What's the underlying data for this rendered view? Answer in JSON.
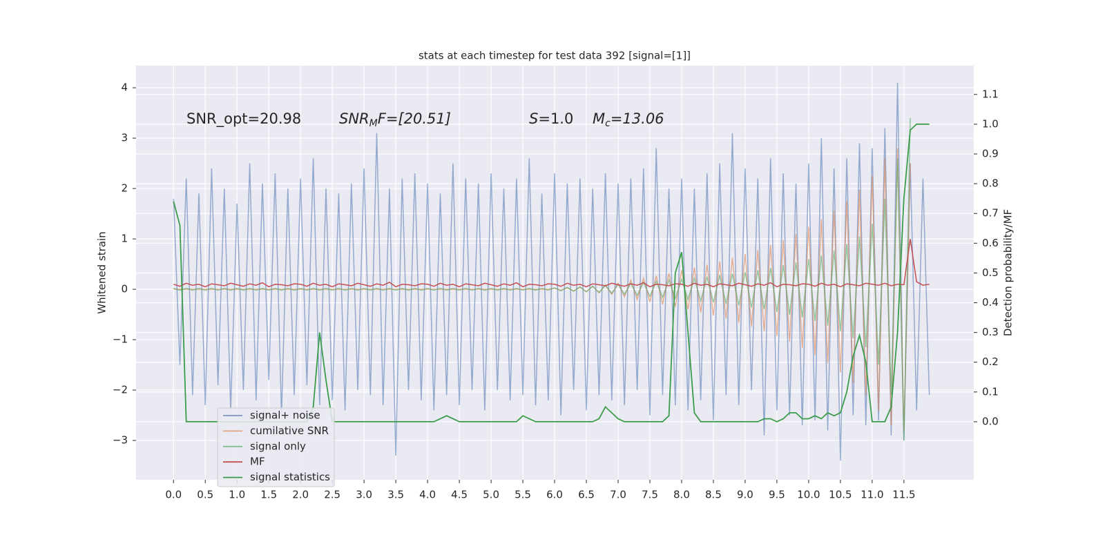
{
  "chart_data": {
    "type": "line",
    "title": "stats at each timestep for test data 392 [signal=[1]]",
    "y_label": "Whitened strain",
    "y2_label": "Detection probability/MF",
    "annotations": [
      {
        "text": "SNR_opt=20.98"
      },
      {
        "symbol": "SNR",
        "subscript": "M",
        "text": "F=[20.51]"
      },
      {
        "symbol": "S",
        "text": "=1.0"
      },
      {
        "symbol": "M",
        "subscript": "c",
        "text": "=13.06"
      }
    ],
    "grid": true,
    "legend": "lower left",
    "xlim": [
      -0.59,
      12.6
    ],
    "ylim": [
      -3.78,
      4.44
    ],
    "y2lim": [
      -0.195,
      1.197
    ],
    "xticks": [
      {
        "value": 0,
        "label": "0.0"
      },
      {
        "value": 0.5,
        "label": "0.5"
      },
      {
        "value": 1,
        "label": "1.0"
      },
      {
        "value": 1.5,
        "label": "1.5"
      },
      {
        "value": 2,
        "label": "2.0"
      },
      {
        "value": 2.5,
        "label": "2.5"
      },
      {
        "value": 3,
        "label": "3.0"
      },
      {
        "value": 3.5,
        "label": "3.5"
      },
      {
        "value": 4,
        "label": "4.0"
      },
      {
        "value": 4.5,
        "label": "4.5"
      },
      {
        "value": 5,
        "label": "5.0"
      },
      {
        "value": 5.5,
        "label": "5.5"
      },
      {
        "value": 6,
        "label": "6.0"
      },
      {
        "value": 6.5,
        "label": "6.5"
      },
      {
        "value": 7,
        "label": "7.0"
      },
      {
        "value": 7.5,
        "label": "7.5"
      },
      {
        "value": 8,
        "label": "8.0"
      },
      {
        "value": 8.5,
        "label": "8.5"
      },
      {
        "value": 9,
        "label": "9.0"
      },
      {
        "value": 9.5,
        "label": "9.5"
      },
      {
        "value": 10,
        "label": "10.0"
      },
      {
        "value": 10.5,
        "label": "10.5"
      },
      {
        "value": 11,
        "label": "11.0"
      },
      {
        "value": 11.5,
        "label": "11.5"
      }
    ],
    "yticks": [
      {
        "value": -3,
        "label": "−3"
      },
      {
        "value": -2,
        "label": "−2"
      },
      {
        "value": -1,
        "label": "−1"
      },
      0,
      1,
      2,
      3,
      4
    ],
    "y2ticks": [
      {
        "value": 0,
        "label": "0.0"
      },
      {
        "value": 0.1,
        "label": "0.1"
      },
      {
        "value": 0.2,
        "label": "0.2"
      },
      {
        "value": 0.3,
        "label": "0.3"
      },
      {
        "value": 0.4,
        "label": "0.4"
      },
      {
        "value": 0.5,
        "label": "0.5"
      },
      {
        "value": 0.6,
        "label": "0.6"
      },
      {
        "value": 0.7,
        "label": "0.7"
      },
      {
        "value": 0.8,
        "label": "0.8"
      },
      {
        "value": 0.9,
        "label": "0.9"
      },
      {
        "value": 1,
        "label": "1.0"
      },
      {
        "value": 1.1,
        "label": "1.1"
      }
    ],
    "x": [
      0,
      0.1,
      0.2,
      0.3,
      0.4,
      0.5,
      0.6,
      0.7,
      0.8,
      0.9,
      1,
      1.1,
      1.2,
      1.3,
      1.4,
      1.5,
      1.6,
      1.7,
      1.8,
      1.9,
      2,
      2.1,
      2.2,
      2.3,
      2.4,
      2.5,
      2.6,
      2.7,
      2.8,
      2.9,
      3,
      3.1,
      3.2,
      3.3,
      3.4,
      3.5,
      3.6,
      3.7,
      3.8,
      3.9,
      4,
      4.1,
      4.2,
      4.3,
      4.4,
      4.5,
      4.6,
      4.7,
      4.8,
      4.9,
      5,
      5.1,
      5.2,
      5.3,
      5.4,
      5.5,
      5.6,
      5.7,
      5.8,
      5.9,
      6,
      6.1,
      6.2,
      6.3,
      6.4,
      6.5,
      6.6,
      6.7,
      6.8,
      6.9,
      7,
      7.1,
      7.2,
      7.3,
      7.4,
      7.5,
      7.6,
      7.7,
      7.8,
      7.9,
      8,
      8.1,
      8.2,
      8.3,
      8.4,
      8.5,
      8.6,
      8.7,
      8.8,
      8.9,
      9,
      9.1,
      9.2,
      9.3,
      9.4,
      9.5,
      9.6,
      9.7,
      9.8,
      9.9,
      10,
      10.1,
      10.2,
      10.3,
      10.4,
      10.5,
      10.6,
      10.7,
      10.8,
      10.9,
      11,
      11.1,
      11.2,
      11.3,
      11.4,
      11.5,
      11.6,
      11.7,
      11.8,
      11.9
    ],
    "series": [
      {
        "name": "signal+ noise",
        "color": "#4c72b0",
        "values": [
          1.8,
          -1.5,
          2.2,
          -2.1,
          1.9,
          -2.3,
          2.4,
          -1.9,
          2.0,
          -2.4,
          1.7,
          -2.0,
          2.5,
          -2.2,
          2.1,
          -1.8,
          2.3,
          -2.5,
          2.0,
          -2.1,
          2.2,
          -1.9,
          2.6,
          -2.3,
          2.0,
          -2.2,
          1.9,
          -2.4,
          2.1,
          -2.0,
          2.4,
          -2.1,
          3.1,
          -2.3,
          2.0,
          -3.3,
          2.2,
          -2.0,
          2.3,
          -2.2,
          2.1,
          -2.4,
          1.9,
          -2.1,
          2.5,
          -2.3,
          2.2,
          -2.0,
          2.1,
          -2.4,
          2.3,
          -2.0,
          2.0,
          -2.2,
          2.2,
          -2.1,
          2.6,
          -2.3,
          1.9,
          -2.2,
          2.3,
          -2.5,
          2.1,
          -2.0,
          2.2,
          -2.4,
          2.0,
          -2.1,
          2.3,
          -2.2,
          2.1,
          -2.3,
          2.2,
          -2.0,
          2.4,
          -2.5,
          2.8,
          -2.1,
          2.0,
          -2.3,
          2.2,
          -2.4,
          2.0,
          -2.2,
          2.3,
          -2.6,
          2.5,
          -2.1,
          3.1,
          -2.3,
          2.4,
          -2.0,
          2.2,
          -2.9,
          2.6,
          -2.4,
          2.3,
          -2.5,
          2.1,
          -2.7,
          2.5,
          -2.6,
          3.0,
          -2.8,
          2.4,
          -3.4,
          2.6,
          -2.5,
          2.9,
          -2.7,
          2.8,
          -2.6,
          3.2,
          -2.9,
          4.1,
          -3.0,
          2.5,
          -2.4,
          2.2,
          -2.1
        ]
      },
      {
        "name": "cumilative SNR",
        "color": "#dd8452",
        "values": [
          0,
          0,
          0,
          0,
          0,
          0,
          0,
          0,
          0,
          0,
          0,
          0,
          0,
          0,
          0,
          0,
          0,
          0,
          0,
          0,
          0,
          0,
          0,
          0,
          0,
          0,
          0,
          0,
          0,
          0,
          0,
          0,
          0,
          0,
          0,
          0,
          0,
          0,
          0,
          0,
          0,
          0,
          0,
          0,
          0,
          0,
          0,
          0,
          0,
          0,
          0,
          0,
          0,
          0,
          0,
          0,
          0,
          0,
          0,
          0,
          0.02,
          -0.02,
          0.03,
          -0.03,
          0.04,
          -0.05,
          0.06,
          -0.07,
          0.08,
          -0.1,
          0.12,
          -0.15,
          0.18,
          -0.2,
          0.22,
          -0.25,
          0.27,
          -0.3,
          0.32,
          -0.35,
          0.38,
          -0.4,
          0.43,
          -0.46,
          0.49,
          -0.52,
          0.55,
          -0.58,
          0.62,
          -0.66,
          0.7,
          -0.74,
          0.78,
          -0.83,
          0.88,
          -0.93,
          0.98,
          -1.04,
          1.1,
          -1.17,
          1.24,
          -1.31,
          1.39,
          -1.47,
          1.56,
          -1.65,
          1.75,
          -1.86,
          1.98,
          -2.1,
          2.25,
          -2.4,
          2.6,
          -2.7,
          2.8,
          -2.8,
          2.5,
          null,
          null,
          null
        ]
      },
      {
        "name": "signal only",
        "color": "#55a868",
        "values": [
          0.02,
          -0.02,
          0.02,
          -0.02,
          0.02,
          -0.02,
          0.02,
          -0.02,
          0.02,
          -0.02,
          0.02,
          -0.02,
          0.02,
          -0.02,
          0.02,
          -0.02,
          0.02,
          -0.02,
          0.02,
          -0.02,
          0.02,
          -0.02,
          0.02,
          -0.02,
          0.02,
          -0.02,
          0.02,
          -0.02,
          0.02,
          -0.02,
          0.02,
          -0.02,
          0.02,
          -0.02,
          0.02,
          -0.02,
          0.02,
          -0.02,
          0.02,
          -0.02,
          0.02,
          -0.02,
          0.02,
          -0.02,
          0.02,
          -0.02,
          0.02,
          -0.02,
          0.02,
          -0.02,
          0.02,
          -0.02,
          0.02,
          -0.02,
          0.02,
          -0.02,
          0.02,
          -0.02,
          0.02,
          -0.02,
          0.03,
          -0.03,
          0.04,
          -0.04,
          0.05,
          -0.05,
          0.06,
          -0.06,
          0.08,
          -0.08,
          0.1,
          -0.1,
          0.12,
          -0.12,
          0.14,
          -0.14,
          0.16,
          -0.16,
          0.18,
          -0.18,
          0.2,
          -0.2,
          0.22,
          -0.23,
          0.25,
          -0.26,
          0.28,
          -0.29,
          0.31,
          -0.32,
          0.34,
          -0.36,
          0.38,
          -0.4,
          0.42,
          -0.45,
          0.48,
          -0.5,
          0.53,
          -0.56,
          0.6,
          -0.63,
          0.67,
          -0.72,
          0.77,
          -0.83,
          0.9,
          -0.97,
          1.05,
          -1.15,
          1.3,
          -1.5,
          1.8,
          -2.1,
          2.6,
          -3.0,
          3.4,
          null,
          null,
          null
        ]
      },
      {
        "name": "MF",
        "color": "#c44e52",
        "values": [
          0.1,
          0.06,
          0.12,
          0.08,
          0.1,
          0.05,
          0.11,
          0.09,
          0.07,
          0.12,
          0.09,
          0.06,
          0.11,
          0.08,
          0.13,
          0.05,
          0.1,
          0.09,
          0.07,
          0.11,
          0.1,
          0.06,
          0.12,
          0.08,
          0.1,
          0.05,
          0.11,
          0.09,
          0.07,
          0.12,
          0.09,
          0.06,
          0.11,
          0.08,
          0.14,
          0.05,
          0.1,
          0.09,
          0.07,
          0.11,
          0.1,
          0.06,
          0.12,
          0.08,
          0.1,
          0.05,
          0.11,
          0.09,
          0.07,
          0.12,
          0.09,
          0.06,
          0.11,
          0.08,
          0.13,
          0.05,
          0.1,
          0.09,
          0.07,
          0.11,
          0.1,
          0.06,
          0.12,
          0.08,
          0.1,
          0.05,
          0.11,
          0.09,
          0.07,
          0.12,
          0.09,
          0.06,
          0.11,
          0.08,
          0.13,
          0.05,
          0.1,
          0.09,
          0.07,
          0.11,
          0.1,
          0.06,
          0.12,
          0.08,
          0.1,
          0.05,
          0.11,
          0.09,
          0.07,
          0.12,
          0.09,
          0.06,
          0.11,
          0.08,
          0.13,
          0.05,
          0.1,
          0.09,
          0.07,
          0.11,
          0.1,
          0.06,
          0.12,
          0.08,
          0.1,
          0.05,
          0.11,
          0.09,
          0.07,
          0.12,
          0.1,
          0.08,
          0.12,
          0.07,
          0.1,
          0.09,
          1.0,
          0.15,
          0.08,
          0.1
        ]
      },
      {
        "name": "signal statistics",
        "color": "#3b9c4a",
        "axis": "y2",
        "values": [
          0.74,
          0.66,
          0.0,
          0.0,
          0.0,
          0.0,
          0.0,
          0.0,
          0.0,
          0.0,
          0.0,
          0.0,
          0.0,
          0.0,
          0.0,
          0.0,
          0.0,
          0.0,
          0.0,
          0.0,
          0.0,
          0.0,
          0.05,
          0.3,
          0.14,
          0.0,
          0.0,
          0.0,
          0.0,
          0.0,
          0.0,
          0.0,
          0.0,
          0.0,
          0.0,
          0.0,
          0.0,
          0.0,
          0.0,
          0.0,
          0.0,
          0.0,
          0.01,
          0.02,
          0.01,
          0.0,
          0.0,
          0.0,
          0.0,
          0.0,
          0.0,
          0.0,
          0.0,
          0.0,
          0.0,
          0.02,
          0.01,
          0.0,
          0.0,
          0.0,
          0.0,
          0.0,
          0.0,
          0.0,
          0.0,
          0.0,
          0.0,
          0.01,
          0.05,
          0.03,
          0.01,
          0.0,
          0.0,
          0.0,
          0.0,
          0.0,
          0.0,
          0.0,
          0.02,
          0.5,
          0.57,
          0.3,
          0.03,
          0.0,
          0.0,
          0.0,
          0.0,
          0.0,
          0.0,
          0.0,
          0.0,
          0.0,
          0.0,
          0.01,
          0.01,
          0.0,
          0.01,
          0.03,
          0.03,
          0.01,
          0.01,
          0.02,
          0.01,
          0.03,
          0.02,
          0.03,
          0.1,
          0.22,
          0.29,
          0.2,
          0.0,
          0.0,
          0.0,
          0.05,
          0.3,
          0.75,
          0.98,
          1.0,
          1.0,
          1.0
        ]
      }
    ]
  }
}
